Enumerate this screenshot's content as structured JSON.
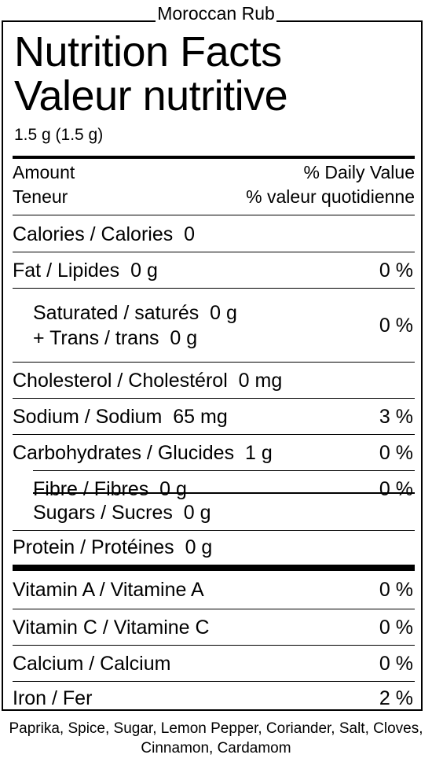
{
  "product_name": "Moroccan Rub",
  "title_en": "Nutrition Facts",
  "title_fr": "Valeur nutritive",
  "serving_size": "1.5 g (1.5 g)",
  "header": {
    "amount_en": "Amount",
    "daily_value_en": "% Daily Value",
    "amount_fr": "Teneur",
    "daily_value_fr": "% valeur quotidienne"
  },
  "nutrients": {
    "calories": {
      "label": "Calories / Calories",
      "amount": "0"
    },
    "fat": {
      "label": "Fat / Lipides",
      "amount": "0 g",
      "dv": "0 %"
    },
    "saturated": {
      "label": "Saturated / saturés",
      "amount": "0 g"
    },
    "trans": {
      "label": "+ Trans / trans",
      "amount": "0 g"
    },
    "sat_trans_dv": "0 %",
    "cholesterol": {
      "label": "Cholesterol / Cholestérol",
      "amount": "0 mg"
    },
    "sodium": {
      "label": "Sodium / Sodium",
      "amount": "65 mg",
      "dv": "3 %"
    },
    "carbohydrates": {
      "label": "Carbohydrates / Glucides",
      "amount": "1 g",
      "dv": "0 %"
    },
    "fibre": {
      "label": "Fibre / Fibres",
      "amount": "0 g",
      "dv": "0 %"
    },
    "sugars": {
      "label": "Sugars / Sucres",
      "amount": "0 g"
    },
    "protein": {
      "label": "Protein / Protéines",
      "amount": "0 g"
    }
  },
  "vitamins": {
    "vitamin_a": {
      "label": "Vitamin A / Vitamine A",
      "dv": "0 %"
    },
    "vitamin_c": {
      "label": "Vitamin C / Vitamine C",
      "dv": "0 %"
    },
    "calcium": {
      "label": "Calcium / Calcium",
      "dv": "0 %"
    },
    "iron": {
      "label": "Iron / Fer",
      "dv": "2 %"
    }
  },
  "ingredients": "Paprika, Spice, Sugar, Lemon Pepper, Coriander, Salt, Cloves, Cinnamon, Cardamom"
}
